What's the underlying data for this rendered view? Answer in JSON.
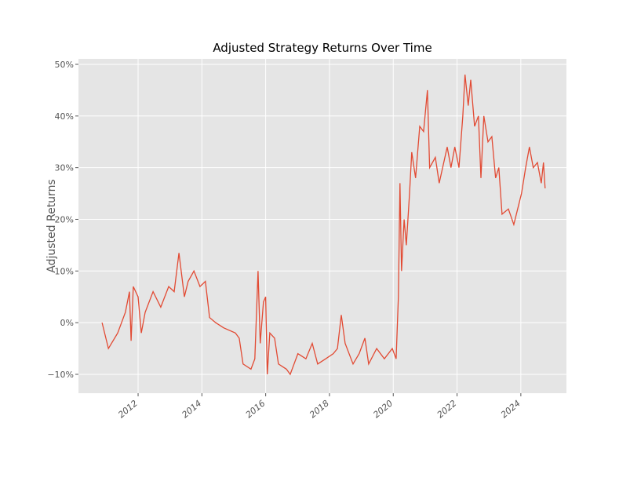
{
  "chart_data": {
    "type": "line",
    "title": "Adjusted Strategy Returns Over Time",
    "y_label": "Adjusted Returns",
    "x": [
      2010.87,
      2011.07,
      2011.36,
      2011.6,
      2011.73,
      2011.78,
      2011.85,
      2012.0,
      2012.1,
      2012.22,
      2012.47,
      2012.71,
      2012.96,
      2013.13,
      2013.28,
      2013.45,
      2013.57,
      2013.75,
      2013.94,
      2014.11,
      2014.24,
      2014.43,
      2014.68,
      2015.05,
      2015.17,
      2015.29,
      2015.54,
      2015.66,
      2015.76,
      2015.83,
      2015.93,
      2016.0,
      2016.05,
      2016.13,
      2016.28,
      2016.4,
      2016.65,
      2016.77,
      2016.89,
      2017.01,
      2017.26,
      2017.46,
      2017.63,
      2017.88,
      2018.12,
      2018.25,
      2018.37,
      2018.49,
      2018.74,
      2018.93,
      2019.11,
      2019.23,
      2019.48,
      2019.72,
      2019.97,
      2020.09,
      2020.16,
      2020.21,
      2020.26,
      2020.34,
      2020.41,
      2020.51,
      2020.58,
      2020.7,
      2020.83,
      2020.95,
      2021.07,
      2021.14,
      2021.32,
      2021.44,
      2021.69,
      2021.81,
      2021.93,
      2022.06,
      2022.18,
      2022.25,
      2022.35,
      2022.43,
      2022.55,
      2022.67,
      2022.75,
      2022.84,
      2022.97,
      2023.09,
      2023.21,
      2023.31,
      2023.41,
      2023.61,
      2023.78,
      2023.9,
      2024.02,
      2024.15,
      2024.27,
      2024.39,
      2024.52,
      2024.64,
      2024.71,
      2024.76
    ],
    "series": [
      {
        "name": "Adjusted Returns",
        "color": "#e24a33",
        "values": [
          0,
          -5,
          -2,
          2,
          6,
          -3.5,
          7,
          5,
          -2,
          2,
          6,
          3,
          7,
          6,
          13.5,
          5,
          8,
          10,
          7,
          8,
          1,
          0,
          -1,
          -2,
          -3,
          -8,
          -9,
          -7,
          10,
          -4,
          4,
          5,
          -10,
          -2,
          -3,
          -8,
          -9,
          -10,
          -8,
          -6,
          -7,
          -4,
          -8,
          -7,
          -6,
          -5,
          1.5,
          -4,
          -8,
          -6,
          -3,
          -8,
          -5,
          -7,
          -5,
          -7,
          5,
          27,
          10,
          20,
          15,
          25,
          33,
          28,
          38,
          37,
          45,
          30,
          32,
          27,
          34,
          30,
          34,
          30,
          40,
          48,
          42,
          47,
          38,
          40,
          28,
          40,
          35,
          36,
          28,
          30,
          21,
          22,
          19,
          22,
          25,
          30,
          34,
          30,
          31,
          27,
          31,
          26
        ]
      }
    ],
    "xlim": [
      2010.13,
      2025.43
    ],
    "xticks": [
      2012,
      2014,
      2016,
      2018,
      2020,
      2022,
      2024
    ],
    "ylim": [
      -13.65,
      51.06
    ],
    "yticks": [
      {
        "value": -10,
        "label": "−10%"
      },
      {
        "value": 0,
        "label": "0%"
      },
      {
        "value": 10,
        "label": "10%"
      },
      {
        "value": 20,
        "label": "20%"
      },
      {
        "value": 30,
        "label": "30%"
      },
      {
        "value": 40,
        "label": "40%"
      },
      {
        "value": 50,
        "label": "50%"
      }
    ],
    "grid": true
  }
}
